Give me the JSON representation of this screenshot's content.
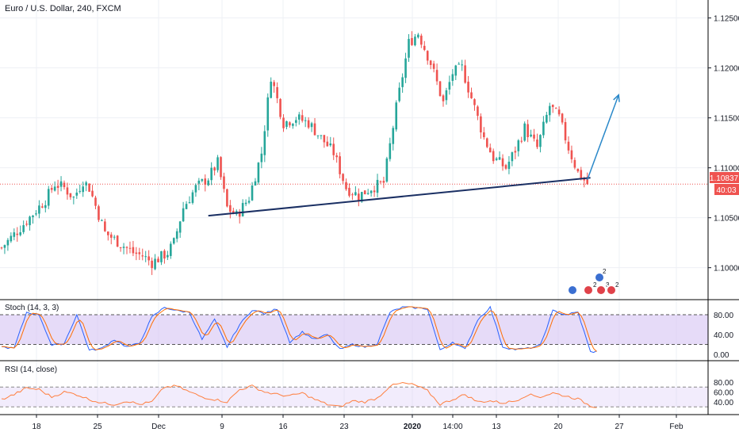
{
  "header": {
    "symbol_title": "Euro / U.S. Dollar, 240, FXCM"
  },
  "colors": {
    "up": "#26a69a",
    "down": "#ef5350",
    "trendline": "#1a2f63",
    "projection_arrow": "#2a88c9",
    "price_line": "#ef5350",
    "stoch_k": "#2962ff",
    "stoch_d": "#ff6d00",
    "rsi": "#ff7f3f",
    "band_fill": "#d9c8f5",
    "grid": "#eef0f4"
  },
  "price_axis": {
    "ticks": [
      "1.12500",
      "1.12000",
      "1.11500",
      "1.11000",
      "1.10500",
      "1.10000"
    ],
    "current_price": "1.10837",
    "countdown": "40:03"
  },
  "stoch_pane": {
    "label": "Stoch (14, 3, 3)",
    "ticks": [
      "80.00",
      "40.00",
      "0.00"
    ],
    "upper_band": 80,
    "lower_band": 20
  },
  "rsi_pane": {
    "label": "RSI (14, close)",
    "ticks": [
      "80.00",
      "60.00",
      "40.00"
    ],
    "upper_band": 70,
    "lower_band": 30
  },
  "time_axis": {
    "labels": [
      "18",
      "25",
      "Dec",
      "9",
      "16",
      "23",
      "2020",
      "14:00",
      "13",
      "20",
      "27",
      "Feb"
    ]
  },
  "event_markers": {
    "counts": [
      "2",
      "2",
      "3",
      "2"
    ]
  },
  "chart_data": {
    "type": "candlestick",
    "title": "Euro / U.S. Dollar, 240, FXCM",
    "ylim": [
      1.0968,
      1.1268
    ],
    "close_path": [
      [
        0,
        1.102
      ],
      [
        6,
        1.104
      ],
      [
        14,
        1.1068
      ],
      [
        17,
        1.1084
      ],
      [
        20,
        1.108
      ],
      [
        23,
        1.107
      ],
      [
        26,
        1.1087
      ],
      [
        28,
        1.108
      ],
      [
        33,
        1.1035
      ],
      [
        42,
        1.1015
      ],
      [
        45,
        1.1012
      ],
      [
        48,
        1.1005
      ],
      [
        53,
        1.1015
      ],
      [
        55,
        1.1025
      ],
      [
        58,
        1.106
      ],
      [
        62,
        1.108
      ],
      [
        66,
        1.109
      ],
      [
        69,
        1.1105
      ],
      [
        72,
        1.106
      ],
      [
        75,
        1.1052
      ],
      [
        79,
        1.107
      ],
      [
        83,
        1.1115
      ],
      [
        86,
        1.1192
      ],
      [
        90,
        1.1145
      ],
      [
        94,
        1.115
      ],
      [
        98,
        1.1145
      ],
      [
        102,
        1.113
      ],
      [
        106,
        1.1115
      ],
      [
        110,
        1.108
      ],
      [
        114,
        1.1072
      ],
      [
        118,
        1.108
      ],
      [
        122,
        1.1085
      ],
      [
        126,
        1.116
      ],
      [
        130,
        1.1225
      ],
      [
        133,
        1.1235
      ],
      [
        137,
        1.1205
      ],
      [
        141,
        1.1165
      ],
      [
        144,
        1.1195
      ],
      [
        147,
        1.12
      ],
      [
        150,
        1.117
      ],
      [
        154,
        1.113
      ],
      [
        157,
        1.111
      ],
      [
        161,
        1.11
      ],
      [
        164,
        1.1118
      ],
      [
        167,
        1.114
      ],
      [
        171,
        1.112
      ],
      [
        175,
        1.1162
      ],
      [
        178,
        1.115
      ],
      [
        181,
        1.112
      ],
      [
        184,
        1.1095
      ],
      [
        187,
        1.1084
      ]
    ],
    "candle_count": 188,
    "trendline": {
      "from": [
        66,
        1.1052
      ],
      "to": [
        188,
        1.109
      ]
    },
    "projection_arrow": {
      "from": [
        187,
        1.1088
      ],
      "to": [
        197,
        1.1173
      ]
    },
    "current_price": 1.10837,
    "stochastic": {
      "name": "Stoch (14, 3, 3)",
      "k_path": [
        [
          0,
          15
        ],
        [
          4,
          12
        ],
        [
          8,
          85
        ],
        [
          12,
          80
        ],
        [
          16,
          18
        ],
        [
          20,
          22
        ],
        [
          24,
          80
        ],
        [
          28,
          8
        ],
        [
          32,
          12
        ],
        [
          36,
          30
        ],
        [
          40,
          15
        ],
        [
          44,
          22
        ],
        [
          48,
          75
        ],
        [
          52,
          95
        ],
        [
          56,
          88
        ],
        [
          60,
          85
        ],
        [
          64,
          30
        ],
        [
          68,
          70
        ],
        [
          72,
          15
        ],
        [
          76,
          60
        ],
        [
          80,
          90
        ],
        [
          84,
          82
        ],
        [
          88,
          92
        ],
        [
          92,
          25
        ],
        [
          96,
          45
        ],
        [
          100,
          30
        ],
        [
          104,
          40
        ],
        [
          108,
          10
        ],
        [
          112,
          20
        ],
        [
          116,
          15
        ],
        [
          120,
          22
        ],
        [
          124,
          85
        ],
        [
          128,
          95
        ],
        [
          132,
          94
        ],
        [
          136,
          92
        ],
        [
          140,
          8
        ],
        [
          144,
          25
        ],
        [
          148,
          10
        ],
        [
          152,
          70
        ],
        [
          156,
          95
        ],
        [
          160,
          15
        ],
        [
          164,
          10
        ],
        [
          168,
          12
        ],
        [
          172,
          18
        ],
        [
          176,
          88
        ],
        [
          180,
          80
        ],
        [
          184,
          85
        ],
        [
          188,
          5
        ],
        [
          190,
          6
        ]
      ]
    },
    "rsi": {
      "name": "RSI (14, close)",
      "path": [
        [
          0,
          45
        ],
        [
          4,
          55
        ],
        [
          8,
          68
        ],
        [
          12,
          65
        ],
        [
          16,
          50
        ],
        [
          20,
          60
        ],
        [
          24,
          55
        ],
        [
          28,
          45
        ],
        [
          32,
          38
        ],
        [
          36,
          35
        ],
        [
          40,
          42
        ],
        [
          44,
          35
        ],
        [
          48,
          40
        ],
        [
          52,
          70
        ],
        [
          56,
          72
        ],
        [
          60,
          60
        ],
        [
          64,
          50
        ],
        [
          68,
          45
        ],
        [
          72,
          40
        ],
        [
          76,
          65
        ],
        [
          80,
          72
        ],
        [
          84,
          60
        ],
        [
          88,
          55
        ],
        [
          92,
          52
        ],
        [
          96,
          58
        ],
        [
          100,
          45
        ],
        [
          104,
          35
        ],
        [
          108,
          30
        ],
        [
          112,
          42
        ],
        [
          116,
          40
        ],
        [
          120,
          48
        ],
        [
          124,
          72
        ],
        [
          128,
          78
        ],
        [
          132,
          74
        ],
        [
          136,
          62
        ],
        [
          140,
          35
        ],
        [
          144,
          45
        ],
        [
          148,
          55
        ],
        [
          152,
          40
        ],
        [
          156,
          42
        ],
        [
          160,
          38
        ],
        [
          164,
          42
        ],
        [
          168,
          55
        ],
        [
          172,
          50
        ],
        [
          176,
          58
        ],
        [
          180,
          52
        ],
        [
          184,
          46
        ],
        [
          188,
          32
        ],
        [
          190,
          30
        ]
      ]
    },
    "xlim_candles": [
      0,
      221
    ]
  }
}
